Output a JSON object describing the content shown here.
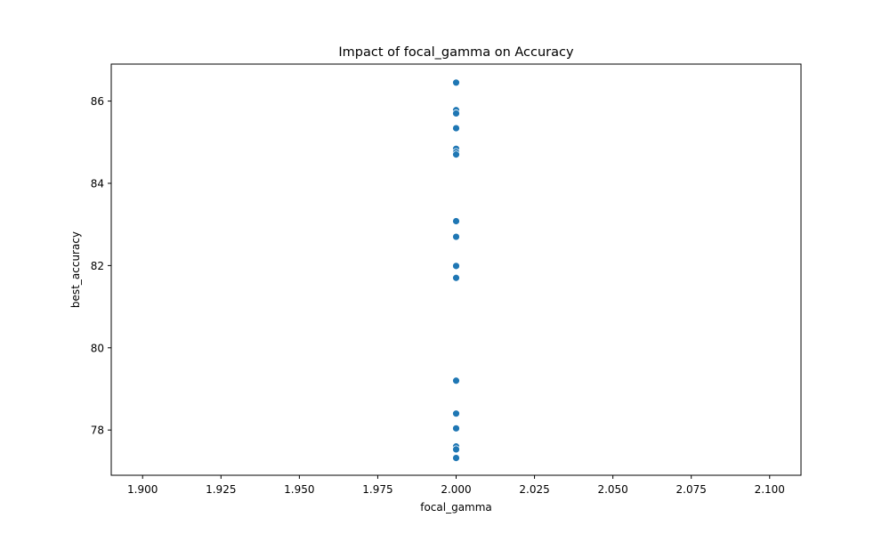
{
  "chart_data": {
    "type": "scatter",
    "title": "Impact of focal_gamma on Accuracy",
    "xlabel": "focal_gamma",
    "ylabel": "best_accuracy",
    "xlim": [
      1.89,
      2.11
    ],
    "ylim": [
      76.9,
      86.9
    ],
    "x_ticks": [
      1.9,
      1.925,
      1.95,
      1.975,
      2.0,
      2.025,
      2.05,
      2.075,
      2.1
    ],
    "x_tick_labels": [
      "1.900",
      "1.925",
      "1.950",
      "1.975",
      "2.000",
      "2.025",
      "2.050",
      "2.075",
      "2.100"
    ],
    "y_ticks": [
      78,
      80,
      82,
      84,
      86
    ],
    "y_tick_labels": [
      "78",
      "80",
      "82",
      "84",
      "86"
    ],
    "grid": false,
    "marker_color": "#1f77b4",
    "series": [
      {
        "points": [
          {
            "x": 2.0,
            "y": 86.45
          },
          {
            "x": 2.0,
            "y": 85.78
          },
          {
            "x": 2.0,
            "y": 85.7
          },
          {
            "x": 2.0,
            "y": 85.34
          },
          {
            "x": 2.0,
            "y": 84.84
          },
          {
            "x": 2.0,
            "y": 84.76
          },
          {
            "x": 2.0,
            "y": 84.7
          },
          {
            "x": 2.0,
            "y": 83.08
          },
          {
            "x": 2.0,
            "y": 82.7
          },
          {
            "x": 2.0,
            "y": 81.99
          },
          {
            "x": 2.0,
            "y": 81.7
          },
          {
            "x": 2.0,
            "y": 79.2
          },
          {
            "x": 2.0,
            "y": 78.4
          },
          {
            "x": 2.0,
            "y": 78.04
          },
          {
            "x": 2.0,
            "y": 77.6
          },
          {
            "x": 2.0,
            "y": 77.53
          },
          {
            "x": 2.0,
            "y": 77.32
          }
        ]
      }
    ]
  }
}
